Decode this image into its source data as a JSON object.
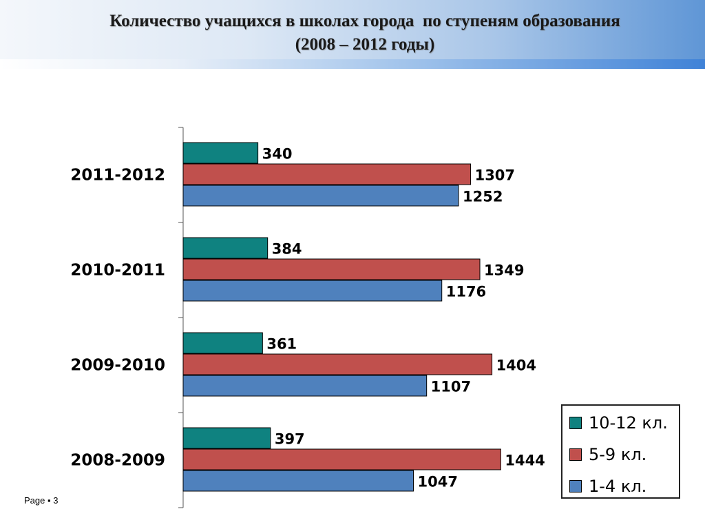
{
  "slide": {
    "title_line1": "Количество учащихся в школах города  по ступеням образования",
    "title_line2": "(2008 – 2012 годы)",
    "footer": "Page ▪ 3"
  },
  "chart_data": {
    "type": "bar",
    "orientation": "horizontal",
    "categories": [
      "2011-2012",
      "2010-2011",
      "2009-2010",
      "2008-2009"
    ],
    "series": [
      {
        "name": "10-12 кл.",
        "color": "#0f8280",
        "values": [
          340,
          384,
          361,
          397
        ]
      },
      {
        "name": "5-9 кл.",
        "color": "#c0504d",
        "values": [
          1307,
          1349,
          1404,
          1444
        ]
      },
      {
        "name": "1-4 кл.",
        "color": "#4f81bd",
        "values": [
          1252,
          1176,
          1107,
          1047
        ]
      }
    ],
    "title": "Количество учащихся в школах города  по ступеням образования (2008 – 2012 годы)",
    "xlim": [
      0,
      1500
    ],
    "grid": false,
    "legend": "bottom-right",
    "data_labels": true
  }
}
